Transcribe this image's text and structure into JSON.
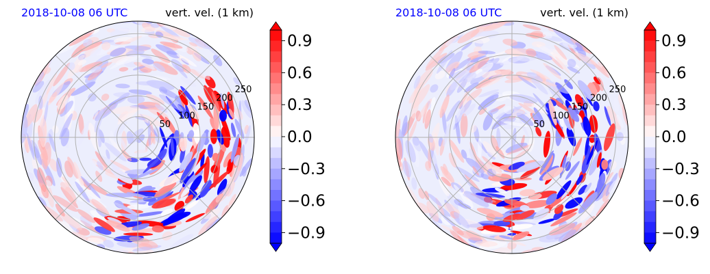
{
  "chart_data": [
    {
      "type": "heatmap",
      "title_left": "2018-10-08 06 UTC",
      "title_right": "vert. vel. (1 km)",
      "title_left_color": "#0000ff",
      "projection": "polar",
      "radial_tick_labels": [
        "50",
        "100",
        "150",
        "200",
        "250"
      ],
      "radial_range": [
        0,
        280
      ],
      "grid": true,
      "colorbar": {
        "range": [
          -1.0,
          1.0
        ],
        "extend": "both",
        "tick_values": [
          0.9,
          0.6,
          0.3,
          0.0,
          -0.3,
          -0.6,
          -0.9
        ],
        "tick_labels": [
          "0.9",
          "0.6",
          "0.3",
          "0.0",
          "−0.3",
          "−0.6",
          "−0.9"
        ],
        "cmap": "bwr"
      }
    },
    {
      "type": "heatmap",
      "title_left": "2018-10-08 06 UTC",
      "title_right": "vert. vel. (1 km)",
      "title_left_color": "#0000ff",
      "projection": "polar",
      "radial_tick_labels": [
        "50",
        "100",
        "150",
        "200",
        "250"
      ],
      "radial_range": [
        0,
        280
      ],
      "grid": true,
      "colorbar": {
        "range": [
          -1.0,
          1.0
        ],
        "extend": "both",
        "tick_values": [
          0.9,
          0.6,
          0.3,
          0.0,
          -0.3,
          -0.6,
          -0.9
        ],
        "tick_labels": [
          "0.9",
          "0.6",
          "0.3",
          "0.0",
          "−0.3",
          "−0.6",
          "−0.9"
        ],
        "cmap": "bwr"
      }
    }
  ]
}
